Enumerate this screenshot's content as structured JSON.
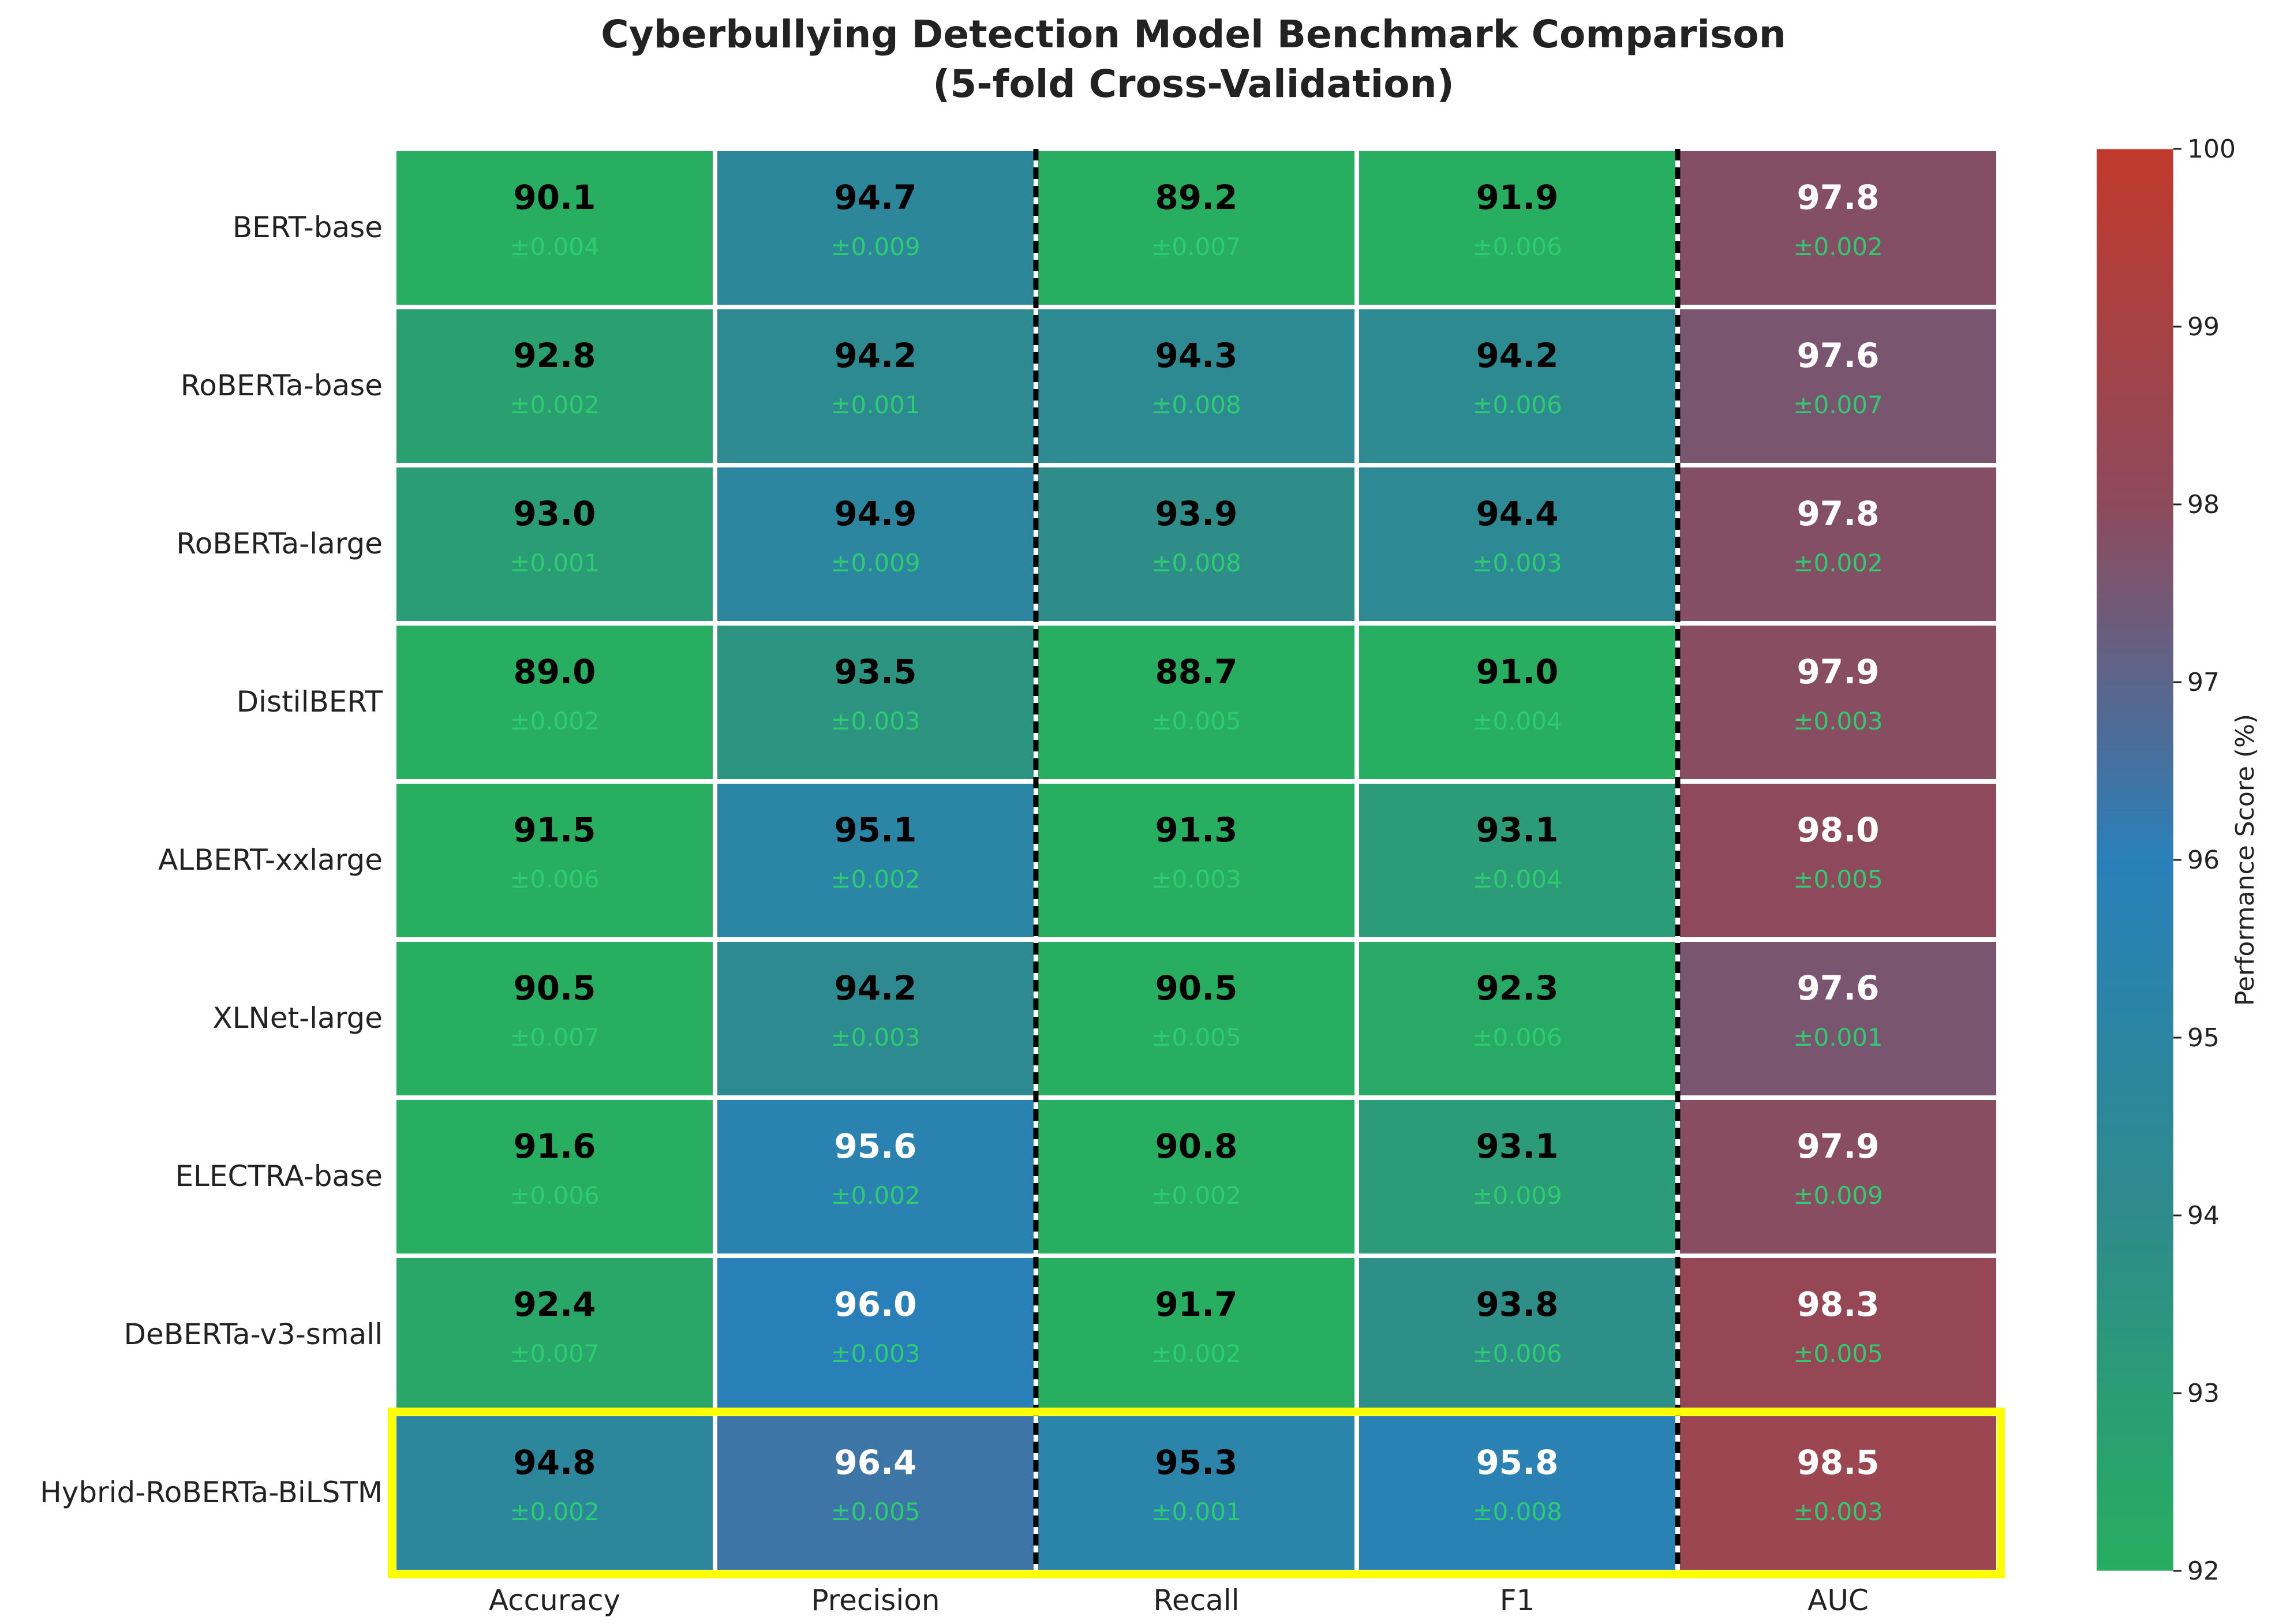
{
  "chart_data": {
    "type": "heatmap",
    "title": "Cyberbullying Detection Model Benchmark Comparison",
    "subtitle": "(5-fold Cross-Validation)",
    "rows": [
      "BERT-base",
      "RoBERTa-base",
      "RoBERTa-large",
      "DistilBERT",
      "ALBERT-xxlarge",
      "XLNet-large",
      "ELECTRA-base",
      "DeBERTa-v3-small",
      "Hybrid-RoBERTa-BiLSTM"
    ],
    "columns": [
      "Accuracy",
      "Precision",
      "Recall",
      "F1",
      "AUC"
    ],
    "values": [
      [
        90.1,
        94.7,
        89.2,
        91.9,
        97.8
      ],
      [
        92.8,
        94.2,
        94.3,
        94.2,
        97.6
      ],
      [
        93.0,
        94.9,
        93.9,
        94.4,
        97.8
      ],
      [
        89.0,
        93.5,
        88.7,
        91.0,
        97.9
      ],
      [
        91.5,
        95.1,
        91.3,
        93.1,
        98.0
      ],
      [
        90.5,
        94.2,
        90.5,
        92.3,
        97.6
      ],
      [
        91.6,
        95.6,
        90.8,
        93.1,
        97.9
      ],
      [
        92.4,
        96.0,
        91.7,
        93.8,
        98.3
      ],
      [
        94.8,
        96.4,
        95.3,
        95.8,
        98.5
      ]
    ],
    "value_labels": [
      [
        "90.1",
        "94.7",
        "89.2",
        "91.9",
        "97.8"
      ],
      [
        "92.8",
        "94.2",
        "94.3",
        "94.2",
        "97.6"
      ],
      [
        "93.0",
        "94.9",
        "93.9",
        "94.4",
        "97.8"
      ],
      [
        "89.0",
        "93.5",
        "88.7",
        "91.0",
        "97.9"
      ],
      [
        "91.5",
        "95.1",
        "91.3",
        "93.1",
        "98.0"
      ],
      [
        "90.5",
        "94.2",
        "90.5",
        "92.3",
        "97.6"
      ],
      [
        "91.6",
        "95.6",
        "90.8",
        "93.1",
        "97.9"
      ],
      [
        "92.4",
        "96.0",
        "91.7",
        "93.8",
        "98.3"
      ],
      [
        "94.8",
        "96.4",
        "95.3",
        "95.8",
        "98.5"
      ]
    ],
    "std_labels": [
      [
        "±0.004",
        "±0.009",
        "±0.007",
        "±0.006",
        "±0.002"
      ],
      [
        "±0.002",
        "±0.001",
        "±0.008",
        "±0.006",
        "±0.007"
      ],
      [
        "±0.001",
        "±0.009",
        "±0.008",
        "±0.003",
        "±0.002"
      ],
      [
        "±0.002",
        "±0.003",
        "±0.005",
        "±0.004",
        "±0.003"
      ],
      [
        "±0.006",
        "±0.002",
        "±0.003",
        "±0.004",
        "±0.005"
      ],
      [
        "±0.007",
        "±0.003",
        "±0.005",
        "±0.006",
        "±0.001"
      ],
      [
        "±0.006",
        "±0.002",
        "±0.002",
        "±0.009",
        "±0.009"
      ],
      [
        "±0.007",
        "±0.003",
        "±0.002",
        "±0.006",
        "±0.005"
      ],
      [
        "±0.002",
        "±0.005",
        "±0.001",
        "±0.008",
        "±0.003"
      ]
    ],
    "colorbar": {
      "label": "Performance Score (%)",
      "range": [
        92,
        100
      ],
      "ticks": [
        "92",
        "93",
        "94",
        "95",
        "96",
        "97",
        "98",
        "99",
        "100"
      ],
      "colors": [
        "#27ae60",
        "#2e8b8b",
        "#2980b9",
        "#8e4a5c",
        "#c0392b"
      ]
    },
    "highlight_row": "Hybrid-RoBERTa-BiLSTM",
    "highlight_color": "#ffff00",
    "std_text_color": "#2ecc71",
    "separator_after_columns": [
      "Precision",
      "F1"
    ]
  }
}
